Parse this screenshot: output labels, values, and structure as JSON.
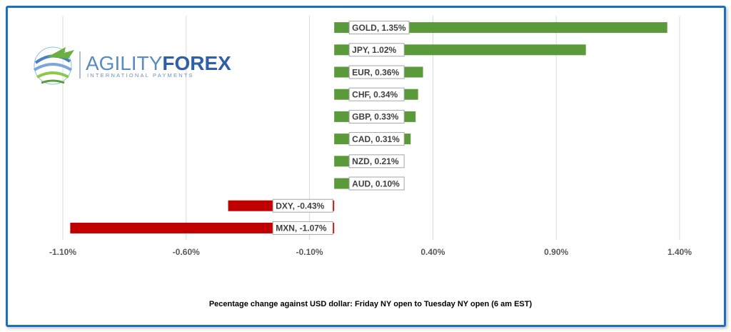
{
  "logo": {
    "part1": "AGILITY",
    "part2": "FOREX",
    "tagline": "INTERNATIONAL PAYMENTS"
  },
  "colors": {
    "positive": "#5a9a3a",
    "negative": "#c00000",
    "frame": "#1f6fc0",
    "grid": "#d9d9d9"
  },
  "chart_data": {
    "type": "bar",
    "orientation": "horizontal",
    "categories": [
      "GOLD",
      "JPY",
      "EUR",
      "CHF",
      "GBP",
      "CAD",
      "NZD",
      "AUD",
      "DXY",
      "MXN"
    ],
    "values": [
      1.35,
      1.02,
      0.36,
      0.34,
      0.33,
      0.31,
      0.21,
      0.1,
      -0.43,
      -1.07
    ],
    "data_labels": [
      "GOLD, 1.35%",
      "JPY, 1.02%",
      "EUR, 0.36%",
      "CHF, 0.34%",
      "GBP, 0.33%",
      "CAD, 0.31%",
      "NZD, 0.21%",
      "AUD, 0.10%",
      "DXY, -0.43%",
      "MXN, -1.07%"
    ],
    "xticks": [
      -1.1,
      -0.6,
      -0.1,
      0.4,
      0.9,
      1.4
    ],
    "xtick_labels": [
      "-1.10%",
      "-0.60%",
      "-0.10%",
      "0.40%",
      "0.90%",
      "1.40%"
    ],
    "xlim": [
      -1.1,
      1.4
    ],
    "xlabel": "Pecentage change against USD dollar: Friday NY open to Tuesday NY open  (6 am EST)",
    "grid": true
  }
}
